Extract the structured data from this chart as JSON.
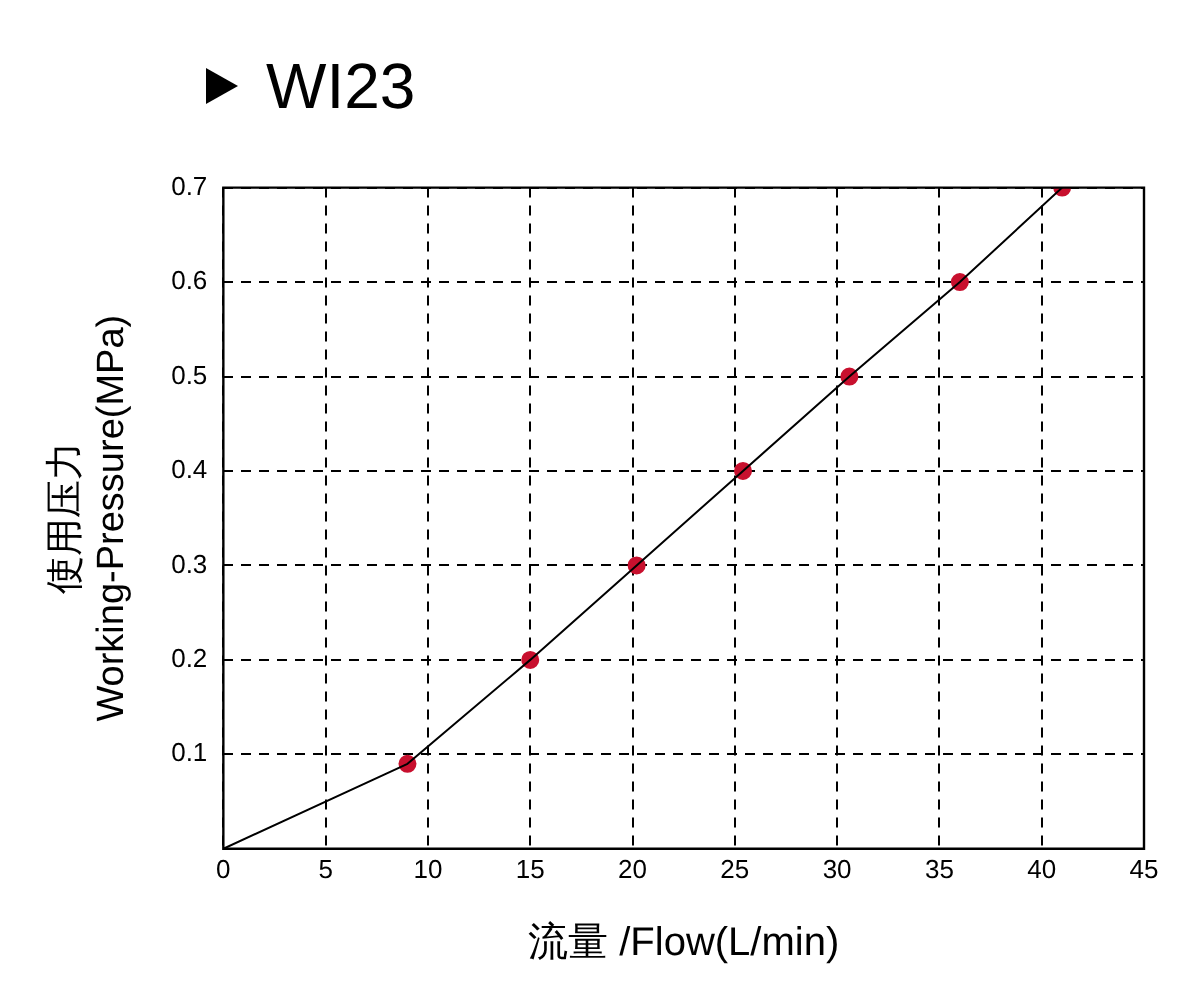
{
  "chart_data": {
    "type": "line",
    "title": "WI23",
    "xlabel": "流量 /Flow(L/min)",
    "ylabel": "使用压力\nWorking-Pressure(MPa)",
    "xlim": [
      0,
      45
    ],
    "xticks": [
      0,
      5,
      10,
      15,
      20,
      25,
      30,
      35,
      40,
      45
    ],
    "ylim": [
      0,
      0.7
    ],
    "yticks": [
      0.1,
      0.2,
      0.3,
      0.4,
      0.5,
      0.6,
      0.7
    ],
    "grid": true,
    "legend": false,
    "series": [
      {
        "color": "#000000",
        "marker": "none",
        "x": [
          0,
          9,
          15,
          20.2,
          25.4,
          30.6,
          36,
          41
        ],
        "values": [
          0,
          0.09,
          0.2,
          0.3,
          0.4,
          0.5,
          0.6,
          0.7
        ]
      },
      {
        "type": "scatter",
        "color": "#c8102e",
        "marker": "circle",
        "x": [
          9,
          15,
          20.2,
          25.4,
          30.6,
          36,
          41
        ],
        "values": [
          0.09,
          0.2,
          0.3,
          0.4,
          0.5,
          0.6,
          0.7
        ]
      }
    ]
  }
}
